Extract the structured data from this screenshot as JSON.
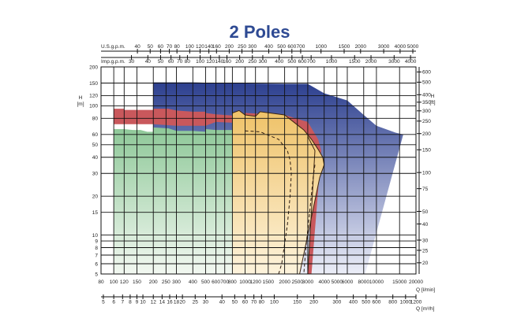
{
  "chart_data": {
    "type": "area",
    "title": "2 Poles",
    "title_color": "#2e4a93",
    "x_axis": {
      "label": "Q [l/min]",
      "scale": "log",
      "range": [
        80,
        20000
      ],
      "ticks": [
        "80",
        "100",
        "120",
        "150",
        "200",
        "250",
        "300",
        "400",
        "500",
        "600",
        "700",
        "800",
        "1000",
        "1200",
        "1500",
        "2000",
        "2500",
        "3000",
        "4000",
        "5000",
        "6000",
        "8000",
        "10000",
        "15000",
        "20000"
      ]
    },
    "x_axis_m3h": {
      "label": "Q [m³/h]",
      "ticks": [
        {
          "label": "5",
          "q": 83.3
        },
        {
          "label": "6",
          "q": 100
        },
        {
          "label": "7",
          "q": 116.7
        },
        {
          "label": "8",
          "q": 133.3
        },
        {
          "label": "9",
          "q": 150
        },
        {
          "label": "10",
          "q": 166.7
        },
        {
          "label": "12",
          "q": 200
        },
        {
          "label": "14",
          "q": 233.3
        },
        {
          "label": "16",
          "q": 266.7
        },
        {
          "label": "18",
          "q": 300
        },
        {
          "label": "20",
          "q": 333.3
        },
        {
          "label": "25",
          "q": 416.7
        },
        {
          "label": "30",
          "q": 500
        },
        {
          "label": "40",
          "q": 666.7
        },
        {
          "label": "50",
          "q": 833.3
        },
        {
          "label": "60",
          "q": 1000
        },
        {
          "label": "70",
          "q": 1166.7
        },
        {
          "label": "80",
          "q": 1333.3
        },
        {
          "label": "100",
          "q": 1666.7
        },
        {
          "label": "150",
          "q": 2500
        },
        {
          "label": "200",
          "q": 3333.3
        },
        {
          "label": "300",
          "q": 5000
        },
        {
          "label": "400",
          "q": 6666.7
        },
        {
          "label": "500",
          "q": 8333.3
        },
        {
          "label": "600",
          "q": 10000
        },
        {
          "label": "800",
          "q": 13333.3
        },
        {
          "label": "1000",
          "q": 16666.7
        },
        {
          "label": "1200",
          "q": 20000
        }
      ]
    },
    "x_axis_usgpm": {
      "label": "U.S.g.p.m.",
      "ticks": [
        {
          "label": "40",
          "q": 151.4
        },
        {
          "label": "50",
          "q": 189.3
        },
        {
          "label": "60",
          "q": 227.1
        },
        {
          "label": "70",
          "q": 265
        },
        {
          "label": "80",
          "q": 302.8
        },
        {
          "label": "100",
          "q": 378.5
        },
        {
          "label": "120",
          "q": 454.2
        },
        {
          "label": "140",
          "q": 530
        },
        {
          "label": "160",
          "q": 605.7
        },
        {
          "label": "200",
          "q": 757.1
        },
        {
          "label": "250",
          "q": 946.4
        },
        {
          "label": "300",
          "q": 1135.6
        },
        {
          "label": "400",
          "q": 1514.2
        },
        {
          "label": "500",
          "q": 1892.7
        },
        {
          "label": "600",
          "q": 2271.2
        },
        {
          "label": "700",
          "q": 2649.8
        },
        {
          "label": "1000",
          "q": 3785.4
        },
        {
          "label": "1500",
          "q": 5678.1
        },
        {
          "label": "2000",
          "q": 7570.8
        },
        {
          "label": "3000",
          "q": 11356.2
        },
        {
          "label": "4000",
          "q": 15141.6
        },
        {
          "label": "5000",
          "q": 18927.1
        }
      ]
    },
    "x_axis_impgpm": {
      "label": "Imp.g.p.m.",
      "ticks": [
        {
          "label": "30",
          "q": 136.4
        },
        {
          "label": "40",
          "q": 181.8
        },
        {
          "label": "50",
          "q": 227.3
        },
        {
          "label": "60",
          "q": 272.8
        },
        {
          "label": "70",
          "q": 318.2
        },
        {
          "label": "80",
          "q": 363.7
        },
        {
          "label": "100",
          "q": 454.6
        },
        {
          "label": "120",
          "q": 545.5
        },
        {
          "label": "140",
          "q": 636.4
        },
        {
          "label": "160",
          "q": 727.4
        },
        {
          "label": "200",
          "q": 909.2
        },
        {
          "label": "250",
          "q": 1136.5
        },
        {
          "label": "300",
          "q": 1363.8
        },
        {
          "label": "400",
          "q": 1818.4
        },
        {
          "label": "500",
          "q": 2273
        },
        {
          "label": "600",
          "q": 2727.6
        },
        {
          "label": "700",
          "q": 3182.2
        },
        {
          "label": "1000",
          "q": 4546
        },
        {
          "label": "1500",
          "q": 6819
        },
        {
          "label": "2000",
          "q": 9092
        },
        {
          "label": "3000",
          "q": 13638
        },
        {
          "label": "4000",
          "q": 18184
        }
      ]
    },
    "y_axis": {
      "label": "H [m]",
      "label_top": "H",
      "label_unit": "[m]",
      "scale": "log",
      "range": [
        5,
        200
      ],
      "ticks": [
        "5",
        "6",
        "7",
        "8",
        "9",
        "10",
        "15",
        "20",
        "30",
        "40",
        "50",
        "60",
        "80",
        "100",
        "120",
        "150",
        "200"
      ]
    },
    "y_axis_ft": {
      "label": "H [ft]",
      "label_top": "H",
      "label_unit": "[ft]",
      "ticks": [
        {
          "label": "20",
          "h": 6.1
        },
        {
          "label": "25",
          "h": 7.62
        },
        {
          "label": "30",
          "h": 9.14
        },
        {
          "label": "40",
          "h": 12.19
        },
        {
          "label": "50",
          "h": 15.24
        },
        {
          "label": "75",
          "h": 22.86
        },
        {
          "label": "100",
          "h": 30.48
        },
        {
          "label": "150",
          "h": 45.72
        },
        {
          "label": "200",
          "h": 60.96
        },
        {
          "label": "250",
          "h": 76.2
        },
        {
          "label": "300",
          "h": 91.44
        },
        {
          "label": "350",
          "h": 106.68
        },
        {
          "label": "400",
          "h": 121.92
        },
        {
          "label": "500",
          "h": 152.4
        },
        {
          "label": "600",
          "h": 182.88
        }
      ]
    },
    "grid": true,
    "series": [
      {
        "fill_top": "#2c3f8f",
        "fill_bottom": "#eceef8",
        "points": [
          [
            200,
            5
          ],
          [
            200,
            152
          ],
          [
            400,
            152
          ],
          [
            600,
            150
          ],
          [
            1000,
            149
          ],
          [
            2000,
            148
          ],
          [
            3000,
            148
          ],
          [
            4000,
            125
          ],
          [
            6000,
            110
          ],
          [
            8000,
            85
          ],
          [
            10000,
            70
          ],
          [
            14000,
            62
          ],
          [
            16000,
            60
          ],
          [
            8200,
            5
          ]
        ]
      },
      {
        "fill_top": "#c9585c",
        "fill_bottom": "#c9585c",
        "points": [
          [
            100,
            95
          ],
          [
            120,
            95
          ],
          [
            120,
            93
          ],
          [
            200,
            93
          ],
          [
            200,
            95
          ],
          [
            260,
            95
          ],
          [
            300,
            92
          ],
          [
            400,
            90
          ],
          [
            500,
            90
          ],
          [
            500,
            88
          ],
          [
            600,
            86
          ],
          [
            800,
            84
          ],
          [
            1000,
            82
          ],
          [
            1000,
            88
          ],
          [
            2000,
            85
          ],
          [
            3000,
            75
          ],
          [
            3600,
            55
          ],
          [
            3800,
            45
          ],
          [
            3200,
            5
          ],
          [
            3000,
            5
          ],
          [
            3400,
            45
          ],
          [
            3300,
            52
          ],
          [
            3000,
            58
          ],
          [
            2000,
            70
          ],
          [
            1000,
            75
          ],
          [
            800,
            74
          ],
          [
            600,
            75
          ],
          [
            500,
            70
          ],
          [
            300,
            70
          ],
          [
            200,
            72
          ],
          [
            100,
            72
          ]
        ]
      },
      {
        "fill_top": "#efc268",
        "fill_bottom": "#fdf3dc",
        "points": [
          [
            800,
            5
          ],
          [
            800,
            88
          ],
          [
            900,
            92
          ],
          [
            1000,
            85
          ],
          [
            1200,
            83
          ],
          [
            1300,
            90
          ],
          [
            2000,
            85
          ],
          [
            2800,
            65
          ],
          [
            3200,
            55
          ],
          [
            3600,
            46
          ],
          [
            3900,
            40
          ],
          [
            4000,
            35
          ],
          [
            3700,
            28
          ],
          [
            3000,
            10
          ],
          [
            2600,
            5
          ]
        ]
      },
      {
        "fill_top": "#8ec898",
        "fill_bottom": "#f2f8f1",
        "points": [
          [
            100,
            5
          ],
          [
            100,
            66
          ],
          [
            120,
            66
          ],
          [
            140,
            65
          ],
          [
            160,
            65
          ],
          [
            180,
            63
          ],
          [
            200,
            63
          ],
          [
            200,
            68
          ],
          [
            260,
            67
          ],
          [
            300,
            64
          ],
          [
            400,
            64
          ],
          [
            500,
            63
          ],
          [
            500,
            66
          ],
          [
            600,
            65
          ],
          [
            800,
            65
          ],
          [
            800,
            5
          ]
        ]
      }
    ],
    "dashed_lines": [
      {
        "color": "#2b1a10",
        "points": [
          [
            1000,
            64
          ],
          [
            1300,
            63
          ],
          [
            1800,
            55
          ],
          [
            2100,
            45
          ],
          [
            2200,
            38
          ],
          [
            2250,
            30
          ],
          [
            2200,
            20
          ],
          [
            2100,
            12
          ],
          [
            1900,
            6
          ],
          [
            1800,
            5
          ]
        ]
      },
      {
        "color": "#2b1a10",
        "points": [
          [
            3400,
            35
          ],
          [
            3300,
            28
          ],
          [
            3100,
            15
          ],
          [
            2900,
            8
          ],
          [
            2800,
            5
          ]
        ]
      }
    ],
    "outline_lines": [
      {
        "color": "#3d2510",
        "points": [
          [
            800,
            88
          ],
          [
            900,
            92
          ],
          [
            1000,
            85
          ],
          [
            1200,
            83
          ],
          [
            1300,
            90
          ],
          [
            2000,
            85
          ],
          [
            2800,
            65
          ],
          [
            3200,
            55
          ],
          [
            3600,
            46
          ],
          [
            3900,
            40
          ],
          [
            4000,
            35
          ],
          [
            3700,
            28
          ],
          [
            3000,
            10
          ],
          [
            2600,
            5
          ]
        ]
      },
      {
        "color": "#3d2510",
        "points": [
          [
            3000,
            58
          ],
          [
            3400,
            45
          ],
          [
            3000,
            5
          ]
        ]
      }
    ]
  }
}
